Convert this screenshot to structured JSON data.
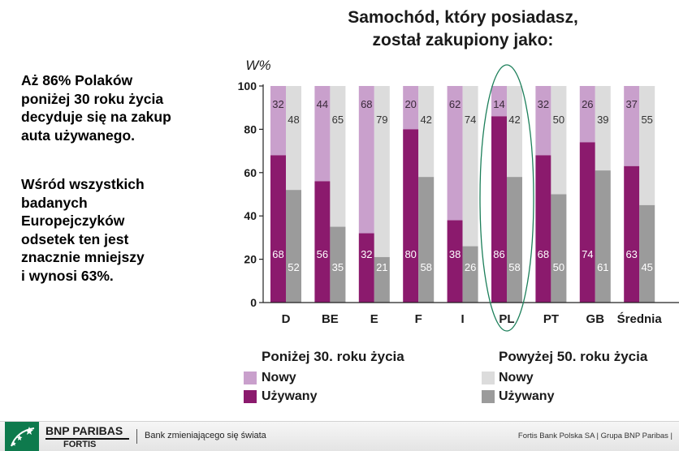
{
  "chart_data": {
    "type": "bar",
    "title": "Samochód, który posiadasz,\nzostał zakupiony jako:",
    "ylabel": "W%",
    "ylim": [
      0,
      100
    ],
    "yticks": [
      0,
      20,
      40,
      60,
      80,
      100
    ],
    "categories": [
      "D",
      "BE",
      "E",
      "F",
      "I",
      "PL",
      "PT",
      "GB",
      "Średnia"
    ],
    "groups": [
      {
        "name": "Poniżej 30. roku życia",
        "series": [
          {
            "name": "Nowy",
            "color": "#c9a0cc",
            "values": [
              32,
              44,
              68,
              20,
              62,
              14,
              32,
              26,
              37
            ]
          },
          {
            "name": "Używany",
            "color": "#8b1a6d",
            "values": [
              68,
              56,
              32,
              80,
              38,
              86,
              68,
              74,
              63
            ]
          }
        ]
      },
      {
        "name": "Powyżej 50. roku życia",
        "series": [
          {
            "name": "Nowy",
            "color": "#dcdcdc",
            "values": [
              48,
              65,
              79,
              42,
              74,
              42,
              50,
              39,
              55
            ]
          },
          {
            "name": "Używany",
            "color": "#9b9b9b",
            "values": [
              52,
              35,
              21,
              58,
              26,
              58,
              50,
              61,
              45
            ]
          }
        ]
      }
    ],
    "highlight": "PL",
    "grid": false,
    "legend_position": "bottom"
  },
  "side_text": {
    "para1": "Aż 86% Polaków\nponiżej 30 roku życia\ndecyduje się na zakup\nauta używanego.",
    "para2": "Wśród wszystkich\nbadanych\nEuropejczyków\nodsetek ten jest\nznacznie mniejszy\ni wynosi 63%."
  },
  "footer": {
    "brand_main": "BNP PARIBAS",
    "brand_sub": "FORTIS",
    "slogan": "Bank zmieniającego się świata",
    "right_text": "Fortis Bank Polska SA  |  Grupa BNP Paribas  |",
    "logo_color": "#0e7a4d"
  }
}
